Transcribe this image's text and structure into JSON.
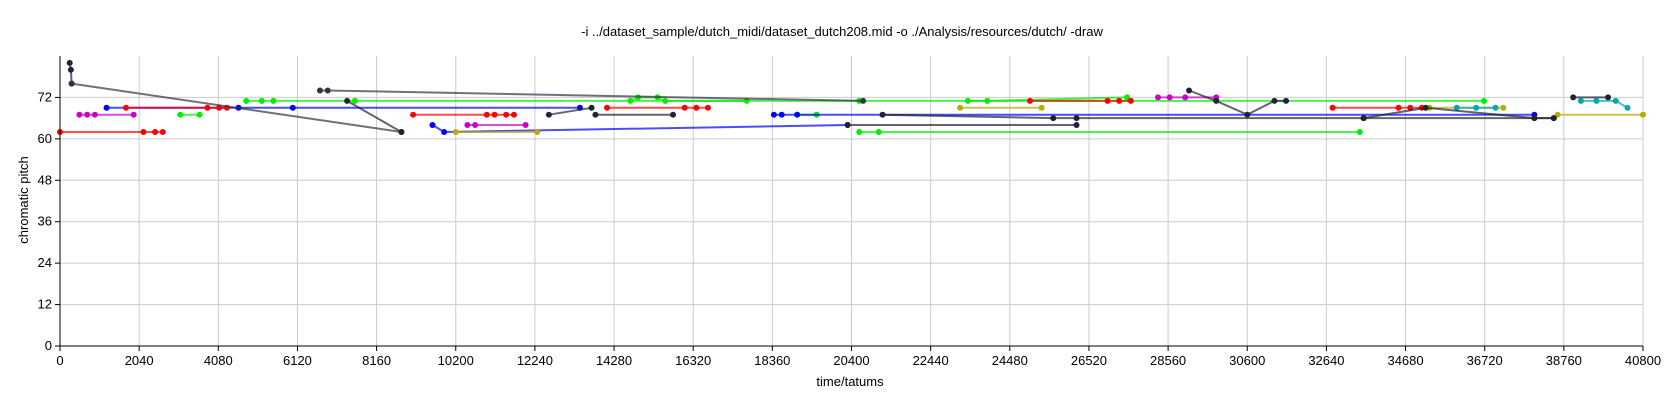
{
  "chart_data": {
    "type": "scatter",
    "title": "-i ../dataset_sample/dutch_midi/dataset_dutch208.mid -o ./Analysis/resources/dutch/ -draw",
    "xlabel": "time/tatums",
    "ylabel": "chromatic pitch",
    "xlim": [
      0,
      40800
    ],
    "ylim": [
      0,
      84
    ],
    "xticks": [
      0,
      2040,
      4080,
      6120,
      8160,
      10200,
      12240,
      14280,
      16320,
      18360,
      20400,
      22440,
      24480,
      26520,
      28560,
      30600,
      32640,
      34680,
      36720,
      38760,
      40800
    ],
    "yticks": [
      0,
      12,
      24,
      36,
      48,
      60,
      72
    ],
    "grid": true,
    "series": [
      {
        "color": "#ff0000",
        "points": [
          [
            0,
            62
          ],
          [
            2150,
            62
          ],
          [
            2450,
            62
          ],
          [
            2650,
            62
          ]
        ]
      },
      {
        "color": "#cc00cc",
        "points": [
          [
            500,
            67
          ],
          [
            700,
            67
          ],
          [
            900,
            67
          ],
          [
            1900,
            67
          ]
        ]
      },
      {
        "color": "#222233",
        "points": [
          [
            250,
            82
          ],
          [
            280,
            80
          ],
          [
            300,
            76
          ]
        ]
      },
      {
        "color": "#0000ff",
        "points": [
          [
            1200,
            69
          ],
          [
            4600,
            69
          ],
          [
            6000,
            69
          ],
          [
            13400,
            69
          ]
        ]
      },
      {
        "color": "#ff0000",
        "points": [
          [
            1700,
            69
          ],
          [
            3800,
            69
          ],
          [
            4100,
            69
          ],
          [
            4300,
            69
          ]
        ]
      },
      {
        "color": "#00ee00",
        "points": [
          [
            3100,
            67
          ],
          [
            3600,
            67
          ]
        ]
      },
      {
        "color": "#00ee00",
        "points": [
          [
            4800,
            71
          ],
          [
            5200,
            71
          ],
          [
            5500,
            71
          ],
          [
            7600,
            71
          ],
          [
            20600,
            71
          ],
          [
            36700,
            71
          ]
        ]
      },
      {
        "color": "#00ee00",
        "points": [
          [
            14700,
            71
          ],
          [
            14900,
            72
          ],
          [
            15400,
            72
          ],
          [
            15600,
            71
          ],
          [
            17700,
            71
          ]
        ]
      },
      {
        "color": "#00ee00",
        "points": [
          [
            20600,
            62
          ],
          [
            21100,
            62
          ],
          [
            33500,
            62
          ]
        ]
      },
      {
        "color": "#00ee00",
        "points": [
          [
            19000,
            67
          ],
          [
            19500,
            67
          ]
        ]
      },
      {
        "color": "#00ee00",
        "points": [
          [
            23400,
            71
          ],
          [
            23900,
            71
          ],
          [
            27500,
            72
          ]
        ]
      },
      {
        "color": "#333344",
        "points": [
          [
            300,
            76
          ],
          [
            8800,
            62
          ]
        ]
      },
      {
        "color": "#333344",
        "points": [
          [
            6700,
            74
          ],
          [
            6900,
            74
          ],
          [
            20700,
            71
          ]
        ]
      },
      {
        "color": "#222233",
        "points": [
          [
            7400,
            71
          ],
          [
            8800,
            62
          ]
        ]
      },
      {
        "color": "#ff0000",
        "points": [
          [
            9100,
            67
          ],
          [
            11000,
            67
          ],
          [
            11200,
            67
          ],
          [
            11500,
            67
          ],
          [
            11700,
            67
          ]
        ]
      },
      {
        "color": "#ff0000",
        "points": [
          [
            14100,
            69
          ],
          [
            16100,
            69
          ],
          [
            16400,
            69
          ],
          [
            16700,
            69
          ]
        ]
      },
      {
        "color": "#ff0000",
        "points": [
          [
            25000,
            71
          ],
          [
            27000,
            71
          ],
          [
            27300,
            71
          ],
          [
            27600,
            71
          ]
        ]
      },
      {
        "color": "#ff0000",
        "points": [
          [
            32800,
            69
          ],
          [
            34500,
            69
          ],
          [
            34800,
            69
          ],
          [
            35100,
            69
          ]
        ]
      },
      {
        "color": "#0000ff",
        "points": [
          [
            9600,
            64
          ],
          [
            9900,
            62
          ],
          [
            20300,
            64
          ]
        ]
      },
      {
        "color": "#0000ff",
        "points": [
          [
            18400,
            67
          ],
          [
            18600,
            67
          ],
          [
            19000,
            67
          ],
          [
            38000,
            67
          ]
        ]
      },
      {
        "color": "#cc00cc",
        "points": [
          [
            10500,
            64
          ],
          [
            10700,
            64
          ],
          [
            12000,
            64
          ]
        ]
      },
      {
        "color": "#cc00cc",
        "points": [
          [
            28300,
            72
          ],
          [
            28600,
            72
          ],
          [
            29000,
            72
          ],
          [
            29800,
            72
          ]
        ]
      },
      {
        "color": "#bbaa00",
        "points": [
          [
            10200,
            62
          ],
          [
            12300,
            62
          ]
        ]
      },
      {
        "color": "#bbaa00",
        "points": [
          [
            23200,
            69
          ],
          [
            25300,
            69
          ]
        ]
      },
      {
        "color": "#bbaa00",
        "points": [
          [
            35300,
            69
          ],
          [
            37200,
            69
          ]
        ]
      },
      {
        "color": "#bbaa00",
        "points": [
          [
            38600,
            67
          ],
          [
            40800,
            67
          ]
        ]
      },
      {
        "color": "#00aaaa",
        "points": [
          [
            36000,
            69
          ],
          [
            36500,
            69
          ],
          [
            37000,
            69
          ]
        ]
      },
      {
        "color": "#00aaaa",
        "points": [
          [
            39200,
            71
          ],
          [
            39600,
            71
          ],
          [
            40100,
            71
          ],
          [
            40400,
            69
          ]
        ]
      },
      {
        "color": "#222233",
        "points": [
          [
            12600,
            67
          ],
          [
            13700,
            69
          ]
        ]
      },
      {
        "color": "#222233",
        "points": [
          [
            13800,
            67
          ],
          [
            15800,
            67
          ]
        ]
      },
      {
        "color": "#222233",
        "points": [
          [
            21200,
            67
          ],
          [
            25600,
            66
          ],
          [
            26200,
            66
          ],
          [
            33600,
            66
          ],
          [
            38500,
            66
          ]
        ]
      },
      {
        "color": "#222233",
        "points": [
          [
            20300,
            64
          ],
          [
            26200,
            64
          ]
        ]
      },
      {
        "color": "#222233",
        "points": [
          [
            29100,
            74
          ],
          [
            29800,
            71
          ],
          [
            30600,
            67
          ],
          [
            31300,
            71
          ],
          [
            31600,
            71
          ]
        ]
      },
      {
        "color": "#222233",
        "points": [
          [
            33600,
            66
          ],
          [
            35200,
            69
          ],
          [
            38000,
            66
          ],
          [
            38500,
            66
          ]
        ]
      },
      {
        "color": "#222233",
        "points": [
          [
            39000,
            72
          ],
          [
            39900,
            72
          ]
        ]
      }
    ]
  }
}
